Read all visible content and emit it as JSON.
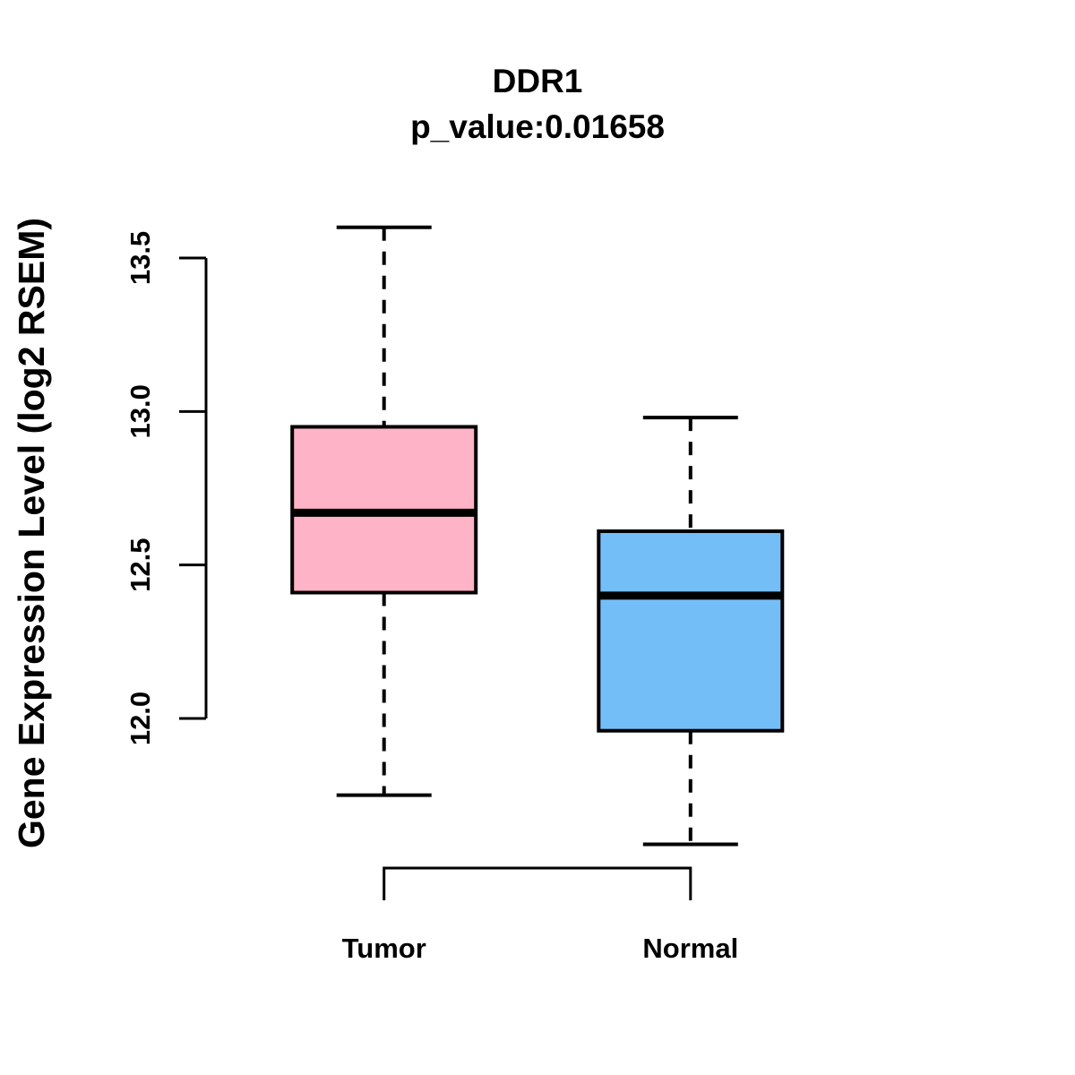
{
  "chart_data": {
    "type": "boxplot",
    "title": "DDR1",
    "subtitle": "p_value:0.01658",
    "ylabel": "Gene Expression Level (log2 RSEM)",
    "categories": [
      "Tumor",
      "Normal"
    ],
    "ytick_labels": [
      "13.5",
      "13.0",
      "12.5",
      "12.0"
    ],
    "ytick_values": [
      13.5,
      13.0,
      12.5,
      12.0
    ],
    "ylim": [
      11.5,
      13.7
    ],
    "grid": false,
    "legend": "none",
    "line_color": "#000000",
    "background_color": "#ffffff",
    "series": [
      {
        "name": "Tumor",
        "fill_color": "#FFB3C6",
        "whisker_low": 11.75,
        "q1": 12.41,
        "median": 12.67,
        "q3": 12.95,
        "whisker_high": 13.6
      },
      {
        "name": "Normal",
        "fill_color": "#74BEF8",
        "whisker_low": 11.59,
        "q1": 11.96,
        "median": 12.4,
        "q3": 12.61,
        "whisker_high": 12.98
      }
    ]
  }
}
